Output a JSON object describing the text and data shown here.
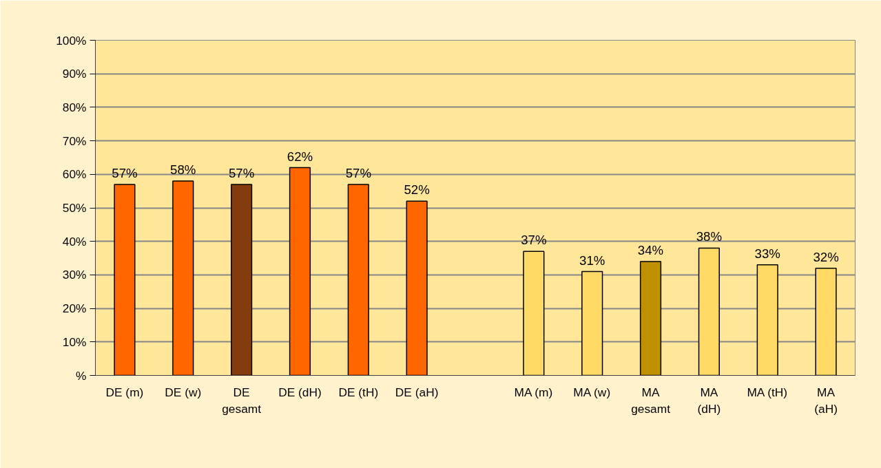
{
  "chart_data": {
    "type": "bar",
    "categories": [
      "DE (m)",
      "DE (w)",
      "DE\ngesamt",
      "DE (dH)",
      "DE (tH)",
      "DE (aH)",
      null,
      "MA (m)",
      "MA (w)",
      "MA\ngesamt",
      "MA\n(dH)",
      "MA (tH)",
      "MA\n(aH)"
    ],
    "values": [
      57,
      58,
      57,
      62,
      57,
      52,
      null,
      37,
      31,
      34,
      38,
      33,
      32
    ],
    "colors": [
      "#ff6600",
      "#ff6600",
      "#843c0c",
      "#ff6600",
      "#ff6600",
      "#ff6600",
      "#ff6600",
      "#ffd966",
      "#ffd966",
      "#bf9000",
      "#ffd966",
      "#ffd966",
      "#ffd966"
    ],
    "value_labels": [
      "57%",
      "58%",
      "57%",
      "62%",
      "57%",
      "52%",
      null,
      "37%",
      "31%",
      "34%",
      "38%",
      "33%",
      "32%"
    ],
    "ylim": [
      0,
      100
    ],
    "yticks": [
      {
        "value": 0,
        "label": "%"
      },
      {
        "value": 10,
        "label": "10%"
      },
      {
        "value": 20,
        "label": "20%"
      },
      {
        "value": 30,
        "label": "30%"
      },
      {
        "value": 40,
        "label": "40%"
      },
      {
        "value": 50,
        "label": "50%"
      },
      {
        "value": 60,
        "label": "60%"
      },
      {
        "value": 70,
        "label": "70%"
      },
      {
        "value": 80,
        "label": "80%"
      },
      {
        "value": 90,
        "label": "90%"
      },
      {
        "value": 100,
        "label": "100%"
      }
    ],
    "grid": "y"
  }
}
